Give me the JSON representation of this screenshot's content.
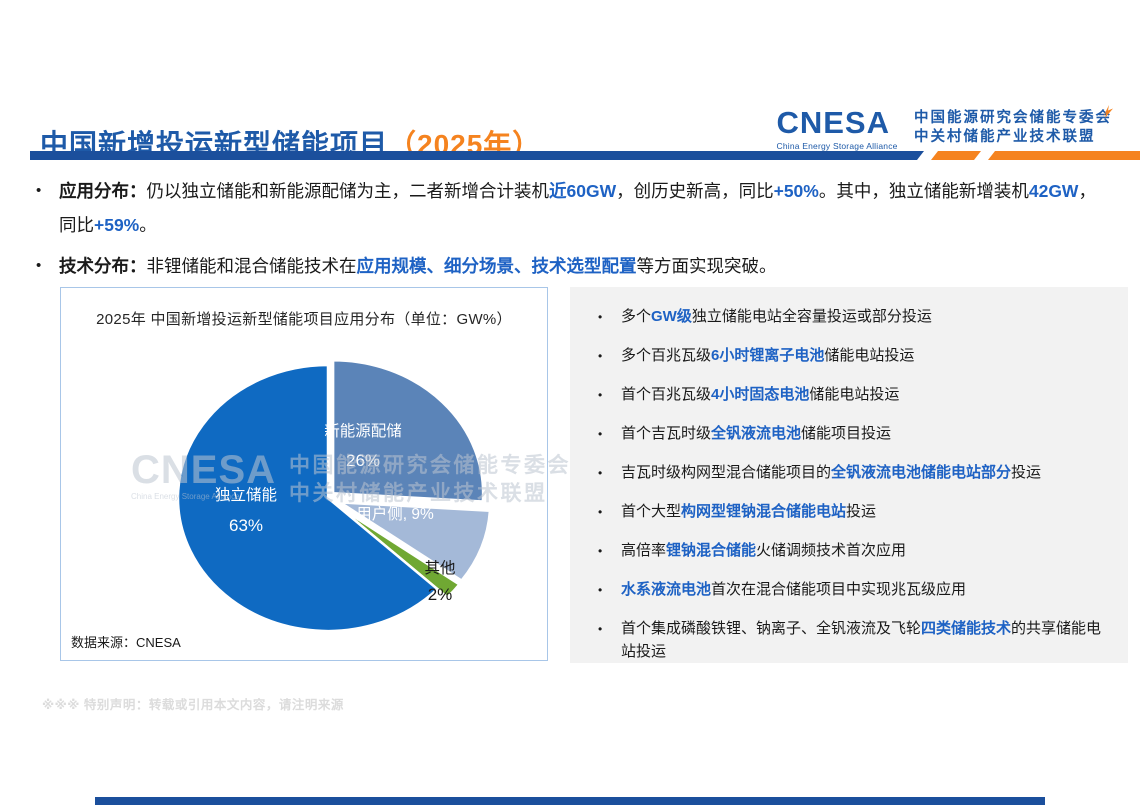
{
  "header": {
    "title": "中国新增投运新型储能项目",
    "title_year": "（2025年）",
    "logo": {
      "acronym": "CNESA",
      "subtitle": "China Energy Storage Alliance",
      "org_line1": "中国能源研究会储能专委会",
      "org_line2": "中关村储能产业技术联盟"
    }
  },
  "summary": [
    {
      "segments": [
        {
          "t": "应用分布：",
          "b": true,
          "c": "dark"
        },
        {
          "t": "仍以独立储能和新能源配储为主，二者新增合计装机",
          "b": false
        },
        {
          "t": "近60GW",
          "b": true,
          "c": "blue"
        },
        {
          "t": "，创历史新高，同比",
          "b": false
        },
        {
          "t": "+50%",
          "b": true,
          "c": "blue"
        },
        {
          "t": "。其中，独立储能新增装机",
          "b": false
        },
        {
          "t": "42GW",
          "b": true,
          "c": "blue"
        },
        {
          "t": "，同比",
          "b": false
        },
        {
          "t": "+59%",
          "b": true,
          "c": "blue"
        },
        {
          "t": "。",
          "b": false
        }
      ]
    },
    {
      "segments": [
        {
          "t": "技术分布：",
          "b": true,
          "c": "dark"
        },
        {
          "t": "非锂储能和混合储能技术在",
          "b": false
        },
        {
          "t": "应用规模、细分场景、技术选型配置",
          "b": true,
          "c": "blue"
        },
        {
          "t": "等方面实现突破。",
          "b": false
        }
      ]
    }
  ],
  "chart": {
    "title": "2025年 中国新增投运新型储能项目应用分布（单位：GW%）",
    "source": "数据来源：CNESA",
    "watermark": {
      "acronym": "CNESA",
      "subtitle": "China Energy Storage Alliance",
      "line1": "中国能源研究会储能专委会",
      "line2": "中关村储能产业技术联盟"
    }
  },
  "chart_data": {
    "type": "pie",
    "title": "2025年 中国新增投运新型储能项目应用分布（单位：GW%）",
    "unit": "GW%",
    "direction": "clockwise",
    "start_angle_deg": 0,
    "legend": "none",
    "source": "数据来源：CNESA",
    "slices": [
      {
        "label": "新能源配储",
        "value": 26,
        "color": "#5B84B8",
        "label_color": "#FFFFFF"
      },
      {
        "label": "用户侧",
        "value": 9,
        "color": "#A4B9D8",
        "label_color": "#FFFFFF"
      },
      {
        "label": "其他",
        "value": 2,
        "color": "#70A833",
        "label_color": "#1A1A1A"
      },
      {
        "label": "独立储能",
        "value": 63,
        "color": "#0F6AC2",
        "label_color": "#FFFFFF"
      }
    ]
  },
  "highlights": [
    {
      "segments": [
        {
          "t": "多个",
          "b": false
        },
        {
          "t": "GW级",
          "b": true,
          "c": "blue"
        },
        {
          "t": "独立储能电站全容量投运或部分投运",
          "b": false
        }
      ]
    },
    {
      "segments": [
        {
          "t": "多个百兆瓦级",
          "b": false
        },
        {
          "t": "6小时锂离子电池",
          "b": true,
          "c": "blue"
        },
        {
          "t": "储能电站投运",
          "b": false
        }
      ]
    },
    {
      "segments": [
        {
          "t": "首个百兆瓦级",
          "b": false
        },
        {
          "t": "4小时固态电池",
          "b": true,
          "c": "blue"
        },
        {
          "t": "储能电站投运",
          "b": false
        }
      ]
    },
    {
      "segments": [
        {
          "t": "首个吉瓦时级",
          "b": false
        },
        {
          "t": "全钒液流电池",
          "b": true,
          "c": "blue"
        },
        {
          "t": "储能项目投运",
          "b": false
        }
      ]
    },
    {
      "segments": [
        {
          "t": "吉瓦时级构网型混合储能项目的",
          "b": false
        },
        {
          "t": "全钒液流电池储能电站部分",
          "b": true,
          "c": "blue"
        },
        {
          "t": "投运",
          "b": false
        }
      ]
    },
    {
      "segments": [
        {
          "t": "首个大型",
          "b": false
        },
        {
          "t": "构网型锂钠混合储能电站",
          "b": true,
          "c": "blue"
        },
        {
          "t": "投运",
          "b": false
        }
      ]
    },
    {
      "segments": [
        {
          "t": "高倍率",
          "b": false
        },
        {
          "t": "锂钠混合储能",
          "b": true,
          "c": "blue"
        },
        {
          "t": "火储调频技术首次应用",
          "b": false
        }
      ]
    },
    {
      "segments": [
        {
          "t": "水系液流电池",
          "b": true,
          "c": "blue"
        },
        {
          "t": "首次在混合储能项目中实现兆瓦级应用",
          "b": false
        }
      ]
    },
    {
      "segments": [
        {
          "t": "首个集成磷酸铁锂、钠离子、全钒液流及飞轮",
          "b": false
        },
        {
          "t": "四类储能技术",
          "b": true,
          "c": "blue"
        },
        {
          "t": "的共享储能电站投运",
          "b": false
        }
      ]
    }
  ],
  "footer": {
    "disclaimer": "※※※ 特别声明：转载或引用本文内容，请注明来源"
  },
  "colors": {
    "title_blue": "#1E5AA8",
    "accent_orange": "#F5831F",
    "inline_blue": "#1E62C4",
    "divider_blue": "#1B4F9C",
    "panel_bg": "#F2F2F2"
  }
}
